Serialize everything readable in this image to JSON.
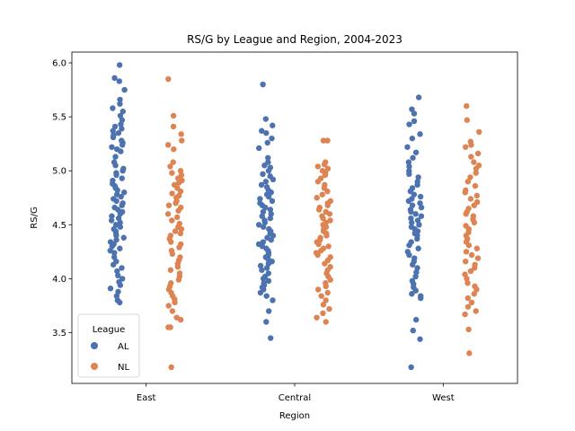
{
  "chart_data": {
    "type": "scatter",
    "subtype": "strip",
    "title": "RS/G by League and Region, 2004-2023",
    "xlabel": "Region",
    "ylabel": "RS/G",
    "categories": [
      "East",
      "Central",
      "West"
    ],
    "ylim": [
      3.03,
      6.1
    ],
    "yticks": [
      3.5,
      4.0,
      4.5,
      5.0,
      5.5,
      6.0
    ],
    "ytick_labels": [
      "3.5",
      "4.0",
      "4.5",
      "5.0",
      "5.5",
      "6.0"
    ],
    "grid": false,
    "legend": {
      "title": "League",
      "placement": "lower-left"
    },
    "series": [
      {
        "name": "AL",
        "color": "#4c72b0",
        "values": {
          "East": [
            5.98,
            5.86,
            5.83,
            5.75,
            5.66,
            5.62,
            5.58,
            5.55,
            5.51,
            5.47,
            5.43,
            5.41,
            5.39,
            5.37,
            5.35,
            5.33,
            5.31,
            5.28,
            5.26,
            5.24,
            5.22,
            5.2,
            5.18,
            5.13,
            5.08,
            5.05,
            5.02,
            5.0,
            4.98,
            4.96,
            4.93,
            4.91,
            4.88,
            4.86,
            4.84,
            4.82,
            4.8,
            4.78,
            4.76,
            4.74,
            4.72,
            4.7,
            4.68,
            4.66,
            4.64,
            4.62,
            4.6,
            4.58,
            4.56,
            4.54,
            4.52,
            4.5,
            4.48,
            4.46,
            4.44,
            4.42,
            4.4,
            4.38,
            4.36,
            4.34,
            4.32,
            4.3,
            4.28,
            4.26,
            4.24,
            4.2,
            4.16,
            4.13,
            4.1,
            4.07,
            4.03,
            4.0,
            3.97,
            3.94,
            3.91,
            3.88,
            3.84,
            3.8,
            3.78
          ],
          "Central": [
            5.8,
            5.48,
            5.42,
            5.37,
            5.35,
            5.3,
            5.26,
            5.21,
            5.12,
            5.08,
            5.05,
            5.03,
            5.0,
            4.97,
            4.95,
            4.92,
            4.9,
            4.87,
            4.85,
            4.82,
            4.8,
            4.78,
            4.76,
            4.74,
            4.72,
            4.7,
            4.68,
            4.66,
            4.64,
            4.62,
            4.6,
            4.58,
            4.56,
            4.54,
            4.52,
            4.5,
            4.48,
            4.46,
            4.44,
            4.42,
            4.4,
            4.38,
            4.36,
            4.34,
            4.32,
            4.3,
            4.28,
            4.26,
            4.24,
            4.22,
            4.2,
            4.18,
            4.16,
            4.14,
            4.12,
            4.1,
            4.08,
            4.05,
            4.02,
            4.0,
            3.98,
            3.96,
            3.94,
            3.92,
            3.9,
            3.87,
            3.84,
            3.8,
            3.7,
            3.6,
            3.45
          ],
          "West": [
            5.68,
            5.57,
            5.53,
            5.46,
            5.43,
            5.34,
            5.3,
            5.22,
            5.17,
            5.12,
            5.08,
            5.04,
            5.0,
            4.97,
            4.94,
            4.9,
            4.87,
            4.84,
            4.81,
            4.78,
            4.76,
            4.74,
            4.72,
            4.7,
            4.68,
            4.66,
            4.64,
            4.62,
            4.6,
            4.58,
            4.56,
            4.54,
            4.52,
            4.5,
            4.48,
            4.46,
            4.44,
            4.42,
            4.4,
            4.37,
            4.34,
            4.31,
            4.28,
            4.25,
            4.22,
            4.19,
            4.16,
            4.13,
            4.1,
            4.06,
            4.02,
            3.98,
            3.95,
            3.92,
            3.89,
            3.86,
            3.84,
            3.82,
            3.62,
            3.52,
            3.44,
            3.18
          ]
        }
      },
      {
        "name": "NL",
        "color": "#dd8452",
        "values": {
          "East": [
            5.85,
            5.51,
            5.41,
            5.34,
            5.28,
            5.24,
            5.2,
            5.08,
            5.04,
            5.0,
            4.98,
            4.96,
            4.93,
            4.91,
            4.89,
            4.87,
            4.84,
            4.81,
            4.79,
            4.77,
            4.75,
            4.72,
            4.7,
            4.68,
            4.66,
            4.63,
            4.6,
            4.57,
            4.54,
            4.51,
            4.48,
            4.46,
            4.44,
            4.42,
            4.4,
            4.37,
            4.34,
            4.32,
            4.29,
            4.26,
            4.23,
            4.2,
            4.17,
            4.14,
            4.11,
            4.08,
            4.05,
            4.02,
            3.99,
            3.96,
            3.93,
            3.9,
            3.87,
            3.84,
            3.81,
            3.78,
            3.75,
            3.7,
            3.64,
            3.62,
            3.55,
            3.55,
            3.18
          ],
          "Central": [
            5.28,
            5.28,
            5.08,
            5.06,
            5.04,
            5.02,
            5.0,
            4.98,
            4.96,
            4.93,
            4.9,
            4.87,
            4.84,
            4.81,
            4.78,
            4.75,
            4.72,
            4.7,
            4.68,
            4.66,
            4.64,
            4.62,
            4.6,
            4.58,
            4.56,
            4.54,
            4.52,
            4.5,
            4.48,
            4.46,
            4.44,
            4.42,
            4.4,
            4.38,
            4.36,
            4.34,
            4.32,
            4.3,
            4.28,
            4.26,
            4.24,
            4.22,
            4.2,
            4.17,
            4.14,
            4.11,
            4.08,
            4.05,
            4.02,
            3.99,
            3.96,
            3.93,
            3.9,
            3.87,
            3.84,
            3.8,
            3.76,
            3.72,
            3.68,
            3.64,
            3.6
          ],
          "West": [
            5.6,
            5.47,
            5.36,
            5.27,
            5.24,
            5.22,
            5.16,
            5.13,
            5.08,
            5.05,
            5.02,
            4.98,
            4.94,
            4.9,
            4.86,
            4.82,
            4.8,
            4.77,
            4.74,
            4.71,
            4.68,
            4.65,
            4.62,
            4.6,
            4.58,
            4.55,
            4.52,
            4.49,
            4.46,
            4.43,
            4.4,
            4.37,
            4.34,
            4.31,
            4.28,
            4.25,
            4.22,
            4.19,
            4.16,
            4.13,
            4.1,
            4.07,
            4.04,
            4.0,
            3.96,
            3.93,
            3.9,
            3.86,
            3.82,
            3.78,
            3.74,
            3.7,
            3.67,
            3.53,
            3.31
          ]
        }
      }
    ]
  }
}
